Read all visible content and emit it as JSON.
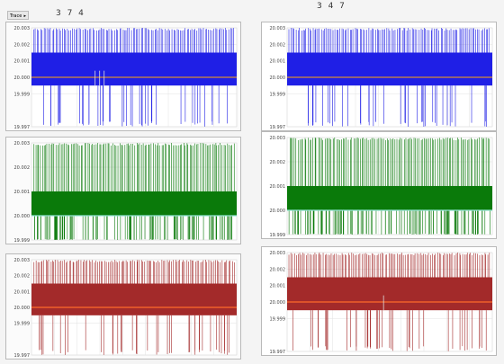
{
  "toolbar": {
    "tab_label": "Trace",
    "tab_arrow": "▸"
  },
  "columns": [
    {
      "title": "3 7 4"
    },
    {
      "title": "3 4 7"
    }
  ],
  "chart_data": [
    {
      "type": "line",
      "column": "3 7 4",
      "row": 1,
      "color": "#1f1fe6",
      "yticks": [
        "20.003",
        "20.002",
        "20.001",
        "20.000",
        "19.999",
        "19.997"
      ],
      "band": [
        19.9995,
        20.0015
      ],
      "baseline": 20.0,
      "spike_high": 20.003,
      "spike_low": 19.997,
      "marker_count": 3
    },
    {
      "type": "line",
      "column": "3 4 7",
      "row": 1,
      "color": "#1f1fe6",
      "yticks": [
        "20.003",
        "20.002",
        "20.001",
        "20.000",
        "19.999",
        "19.997"
      ],
      "band": [
        19.9995,
        20.0015
      ],
      "baseline": 20.0,
      "spike_high": 20.003,
      "spike_low": 19.997,
      "marker_count": 0
    },
    {
      "type": "line",
      "column": "3 7 4",
      "row": 2,
      "color": "#0a7a0a",
      "yticks": [
        "20.003",
        "20.002",
        "20.001",
        "20.000",
        "19.999"
      ],
      "band": [
        20.0,
        20.001
      ],
      "baseline": 20.0,
      "spike_high": 20.003,
      "spike_low": 19.999,
      "marker_count": 0
    },
    {
      "type": "line",
      "column": "3 4 7",
      "row": 2,
      "color": "#0a7a0a",
      "yticks": [
        "20.003",
        "20.002",
        "20.001",
        "20.000",
        "19.999"
      ],
      "band": [
        20.0,
        20.001
      ],
      "baseline": 20.0,
      "spike_high": 20.003,
      "spike_low": 19.999,
      "marker_count": 0
    },
    {
      "type": "line",
      "column": "3 7 4",
      "row": 3,
      "color": "#a32a2a",
      "yticks": [
        "20.003",
        "20.002",
        "20.001",
        "20.000",
        "19.999",
        "19.997"
      ],
      "band": [
        19.9995,
        20.0015
      ],
      "baseline": 20.0,
      "spike_high": 20.003,
      "spike_low": 19.997,
      "marker_count": 0
    },
    {
      "type": "line",
      "column": "3 4 7",
      "row": 3,
      "color": "#a32a2a",
      "yticks": [
        "20.003",
        "20.002",
        "20.001",
        "20.000",
        "19.999",
        "19.997"
      ],
      "band": [
        19.9995,
        20.0015
      ],
      "baseline": 20.0,
      "spike_high": 20.003,
      "spike_low": 19.997,
      "marker_count": 1
    }
  ]
}
